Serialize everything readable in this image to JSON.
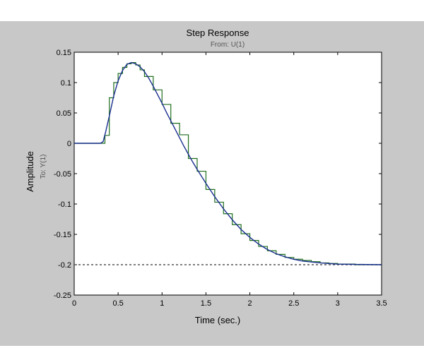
{
  "chart_data": {
    "type": "line",
    "title": "Step Response",
    "subtitle": "From: U(1)",
    "xlabel": "Time (sec.)",
    "ylabel": "Amplitude",
    "ylabel_secondary": "To: Y(1)",
    "xlim": [
      0,
      3.5
    ],
    "ylim": [
      -0.25,
      0.15
    ],
    "xticks": [
      0,
      0.5,
      1,
      1.5,
      2,
      2.5,
      3,
      3.5
    ],
    "xtick_labels": [
      "0",
      "0.5",
      "1",
      "1.5",
      "2",
      "2.5",
      "3",
      "3.5"
    ],
    "yticks": [
      -0.25,
      -0.2,
      -0.15,
      -0.1,
      -0.05,
      0,
      0.05,
      0.1,
      0.15
    ],
    "ytick_labels": [
      "-0.25",
      "-0.2",
      "-0.15",
      "-0.1",
      "-0.05",
      "0",
      "0.05",
      "0.1",
      "0.15"
    ],
    "grid": false,
    "figure_background": "#c8c8c8",
    "axes_background": "#ffffff",
    "reference_line": {
      "y": -0.2,
      "style": "dotted",
      "color": "#555555"
    },
    "series": [
      {
        "style": "solid",
        "color": "#1a2f8f",
        "x": [
          0,
          0.3,
          0.33,
          0.36,
          0.4,
          0.43,
          0.45,
          0.5,
          0.55,
          0.6,
          0.65,
          0.7,
          0.75,
          0.8,
          0.85,
          0.9,
          0.95,
          1.0,
          1.05,
          1.1,
          1.15,
          1.2,
          1.25,
          1.3,
          1.35,
          1.4,
          1.5,
          1.6,
          1.7,
          1.8,
          1.9,
          2.0,
          2.1,
          2.2,
          2.3,
          2.4,
          2.5,
          2.6,
          2.8,
          3.0,
          3.2,
          3.5
        ],
        "y": [
          0,
          0,
          0.003,
          0.02,
          0.045,
          0.065,
          0.078,
          0.103,
          0.12,
          0.13,
          0.133,
          0.131,
          0.126,
          0.118,
          0.107,
          0.094,
          0.08,
          0.066,
          0.051,
          0.037,
          0.023,
          0.009,
          -0.005,
          -0.018,
          -0.031,
          -0.043,
          -0.066,
          -0.088,
          -0.108,
          -0.126,
          -0.142,
          -0.155,
          -0.166,
          -0.175,
          -0.182,
          -0.187,
          -0.191,
          -0.194,
          -0.197,
          -0.199,
          -0.1995,
          -0.2
        ]
      },
      {
        "style": "step",
        "color": "#1f6e1f",
        "x": [
          0,
          0.35,
          0.4,
          0.45,
          0.5,
          0.55,
          0.6,
          0.65,
          0.7,
          0.75,
          0.8,
          0.9,
          1.0,
          1.1,
          1.2,
          1.3,
          1.4,
          1.5,
          1.6,
          1.7,
          1.8,
          1.9,
          2.0,
          2.1,
          2.2,
          2.3,
          2.4,
          2.5,
          2.6,
          2.7,
          2.8,
          2.9,
          3.0,
          3.2,
          3.5
        ],
        "y": [
          0,
          0.013,
          0.075,
          0.1,
          0.115,
          0.125,
          0.131,
          0.133,
          0.129,
          0.121,
          0.11,
          0.088,
          0.064,
          0.033,
          0.014,
          -0.025,
          -0.046,
          -0.076,
          -0.097,
          -0.116,
          -0.134,
          -0.149,
          -0.16,
          -0.17,
          -0.177,
          -0.183,
          -0.188,
          -0.191,
          -0.193,
          -0.195,
          -0.197,
          -0.198,
          -0.199,
          -0.2,
          -0.2
        ]
      }
    ]
  }
}
